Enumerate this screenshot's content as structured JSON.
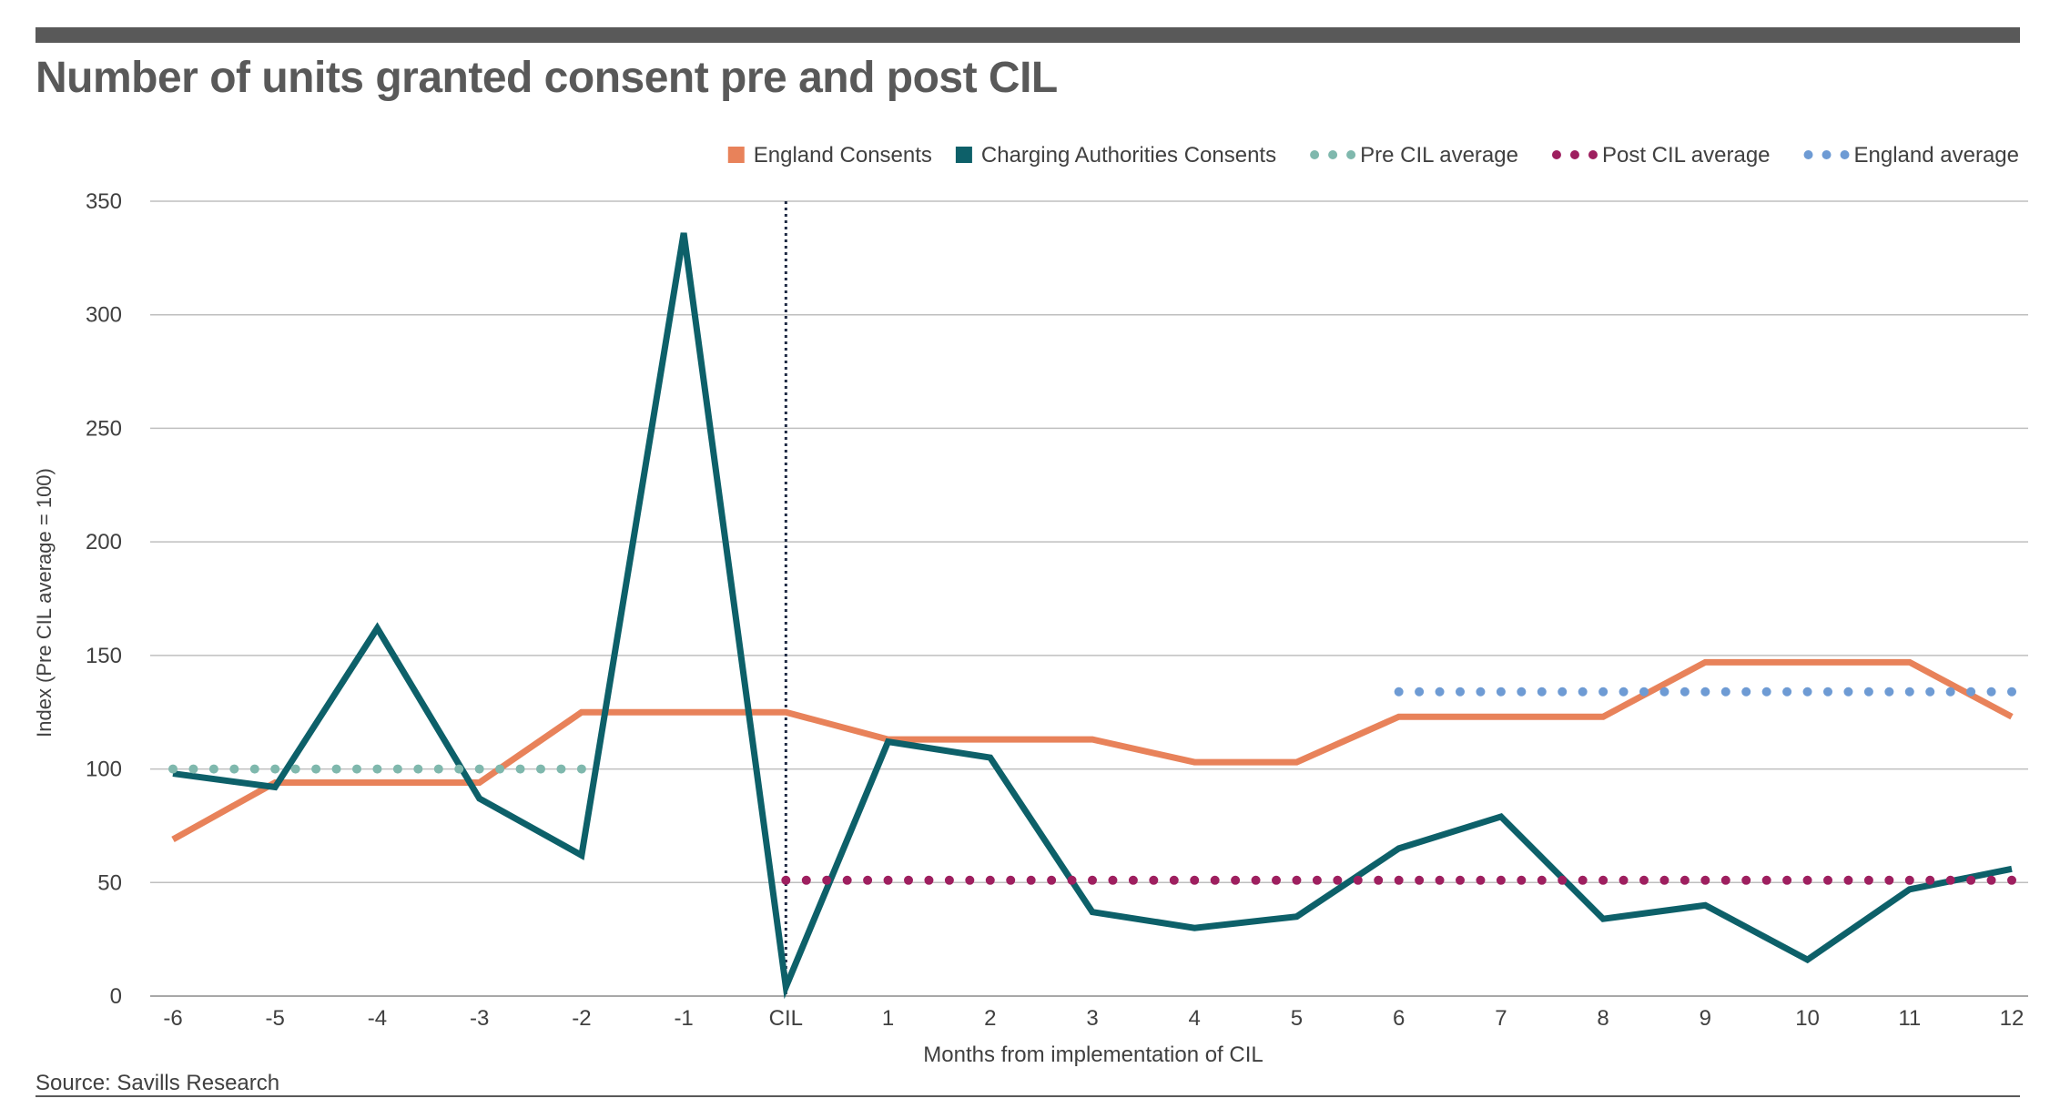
{
  "title": "Number of units granted consent pre and post CIL",
  "source": "Source: Savills Research",
  "chart_data": {
    "type": "line",
    "xlabel": "Months from implementation of CIL",
    "ylabel": "Index (Pre CIL average = 100)",
    "ylim": [
      0,
      350
    ],
    "yticks": [
      0,
      50,
      100,
      150,
      200,
      250,
      300,
      350
    ],
    "categories": [
      "-6",
      "-5",
      "-4",
      "-3",
      "-2",
      "-1",
      "CIL",
      "1",
      "2",
      "3",
      "4",
      "5",
      "6",
      "7",
      "8",
      "9",
      "10",
      "11",
      "12"
    ],
    "grid": true,
    "legend_position": "top-right",
    "reference_line": {
      "at_category": "CIL",
      "style": "dotted",
      "color": "#1f2a44"
    },
    "series": [
      {
        "name": "England Consents",
        "style": "solid",
        "color": "#e8825a",
        "values": [
          69,
          94,
          94,
          94,
          125,
          125,
          125,
          113,
          113,
          113,
          103,
          103,
          123,
          123,
          123,
          147,
          147,
          147,
          123
        ]
      },
      {
        "name": "Charging Authorities Consents",
        "style": "solid",
        "color": "#0d6069",
        "values": [
          98,
          92,
          162,
          87,
          62,
          336,
          4,
          112,
          105,
          37,
          30,
          35,
          65,
          79,
          34,
          40,
          16,
          47,
          56
        ]
      },
      {
        "name": "Pre CIL average",
        "style": "dotted",
        "color": "#7fb8ad",
        "values": [
          100,
          100,
          100,
          100,
          100,
          null,
          null,
          null,
          null,
          null,
          null,
          null,
          null,
          null,
          null,
          null,
          null,
          null,
          null
        ]
      },
      {
        "name": "Post CIL average",
        "style": "dotted",
        "color": "#9e1f5f",
        "values": [
          null,
          null,
          null,
          null,
          null,
          null,
          51,
          51,
          51,
          51,
          51,
          51,
          51,
          51,
          51,
          51,
          51,
          51,
          51
        ]
      },
      {
        "name": "England average",
        "style": "dotted",
        "color": "#6e9bd4",
        "values": [
          null,
          null,
          null,
          null,
          null,
          null,
          null,
          null,
          null,
          null,
          null,
          null,
          134,
          134,
          134,
          134,
          134,
          134,
          134
        ]
      }
    ]
  }
}
